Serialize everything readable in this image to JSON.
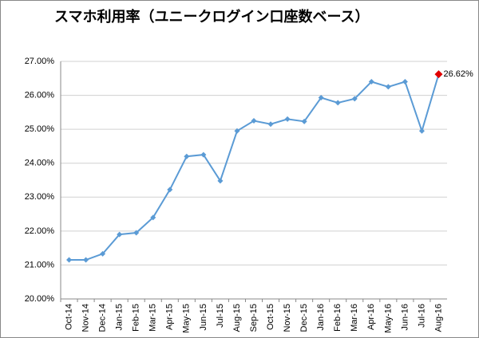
{
  "chart_data": {
    "type": "line",
    "title": "スマホ利用率（ユニークログイン口座数ベース）",
    "categories": [
      "Oct-14",
      "Nov-14",
      "Dec-14",
      "Jan-15",
      "Feb-15",
      "Mar-15",
      "Apr-15",
      "May-15",
      "Jun-15",
      "Jul-15",
      "Aug-15",
      "Sep-15",
      "Oct-15",
      "Nov-15",
      "Dec-15",
      "Jan-16",
      "Feb-16",
      "Mar-16",
      "Apr-16",
      "May-16",
      "Jun-16",
      "Jul-16",
      "Aug-16"
    ],
    "values": [
      21.15,
      21.15,
      21.33,
      21.9,
      21.95,
      22.4,
      23.22,
      24.2,
      24.25,
      23.48,
      24.95,
      25.25,
      25.15,
      25.3,
      25.23,
      25.93,
      25.78,
      25.9,
      26.4,
      26.25,
      26.4,
      24.95,
      26.62
    ],
    "value_labels": [
      null,
      null,
      null,
      null,
      null,
      null,
      null,
      null,
      null,
      null,
      null,
      null,
      null,
      null,
      null,
      null,
      null,
      null,
      null,
      null,
      null,
      null,
      "26.62%"
    ],
    "color": "#5b9bd5",
    "last_point_color": "#e00000",
    "ylim": [
      20,
      27
    ],
    "yticks": [
      {
        "value": 20,
        "label": "20.00%"
      },
      {
        "value": 21,
        "label": "21.00%"
      },
      {
        "value": 22,
        "label": "22.00%"
      },
      {
        "value": 23,
        "label": "23.00%"
      },
      {
        "value": 24,
        "label": "24.00%"
      },
      {
        "value": 25,
        "label": "25.00%"
      },
      {
        "value": 26,
        "label": "26.00%"
      },
      {
        "value": 27,
        "label": "27.00%"
      }
    ],
    "grid": true
  }
}
